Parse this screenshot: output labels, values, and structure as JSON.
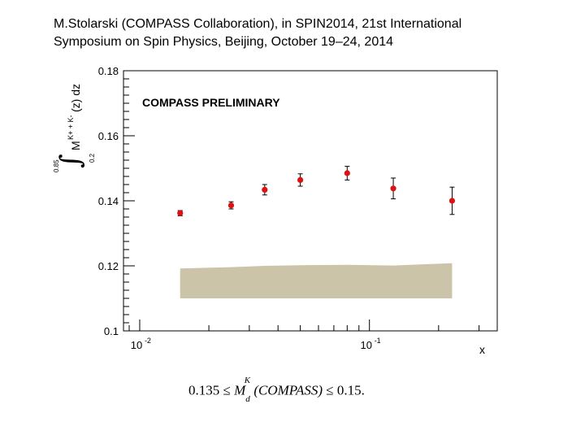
{
  "header": {
    "line1": "M.Stolarski (COMPASS Collaboration), in SPIN2014, 21st International",
    "line2": "Symposium on Spin Physics, Beijing, October 19–24, 2014"
  },
  "chart_data": {
    "type": "scatter",
    "annotation": "COMPASS PRELIMINARY",
    "xlabel": "x",
    "ylabel": {
      "integral_lower": "0.2",
      "integral_upper": "0.85",
      "M": "M",
      "superscript": "K+ + K-",
      "rest": "(z) dz"
    },
    "xscale": "log",
    "xlim": [
      0.0085,
      0.36
    ],
    "ylim": [
      0.1,
      0.18
    ],
    "x_ticks": [
      {
        "value": 0.01,
        "label_base": "10",
        "label_exp": "-2"
      },
      {
        "value": 0.1,
        "label_base": "10",
        "label_exp": "-1"
      }
    ],
    "y_ticks": [
      {
        "value": 0.1,
        "label": "0.1"
      },
      {
        "value": 0.12,
        "label": "0.12"
      },
      {
        "value": 0.14,
        "label": "0.14"
      },
      {
        "value": 0.16,
        "label": "0.16"
      },
      {
        "value": 0.18,
        "label": "0.18"
      }
    ],
    "points": [
      {
        "x": 0.015,
        "y": 0.1362,
        "err": 0.0008
      },
      {
        "x": 0.025,
        "y": 0.1386,
        "err": 0.0011
      },
      {
        "x": 0.035,
        "y": 0.1434,
        "err": 0.0016
      },
      {
        "x": 0.05,
        "y": 0.1464,
        "err": 0.0019
      },
      {
        "x": 0.08,
        "y": 0.1485,
        "err": 0.0021
      },
      {
        "x": 0.127,
        "y": 0.1438,
        "err": 0.0032
      },
      {
        "x": 0.229,
        "y": 0.14,
        "err": 0.0042
      }
    ],
    "systematic_band": {
      "x": [
        0.015,
        0.025,
        0.035,
        0.05,
        0.08,
        0.127,
        0.229
      ],
      "upper": [
        0.1192,
        0.1196,
        0.12,
        0.1202,
        0.1203,
        0.1201,
        0.1208
      ],
      "lower": [
        0.11,
        0.11,
        0.11,
        0.11,
        0.11,
        0.11,
        0.11
      ]
    },
    "colors": {
      "points": "#dd1111",
      "band": "#cbc4a8",
      "frame": "#000000"
    }
  },
  "footer": {
    "lower": "0.135",
    "le": "≤",
    "M": "M",
    "sub": "d",
    "sup": "K",
    "paren": "(COMPASS)",
    "upper": "0.15."
  }
}
